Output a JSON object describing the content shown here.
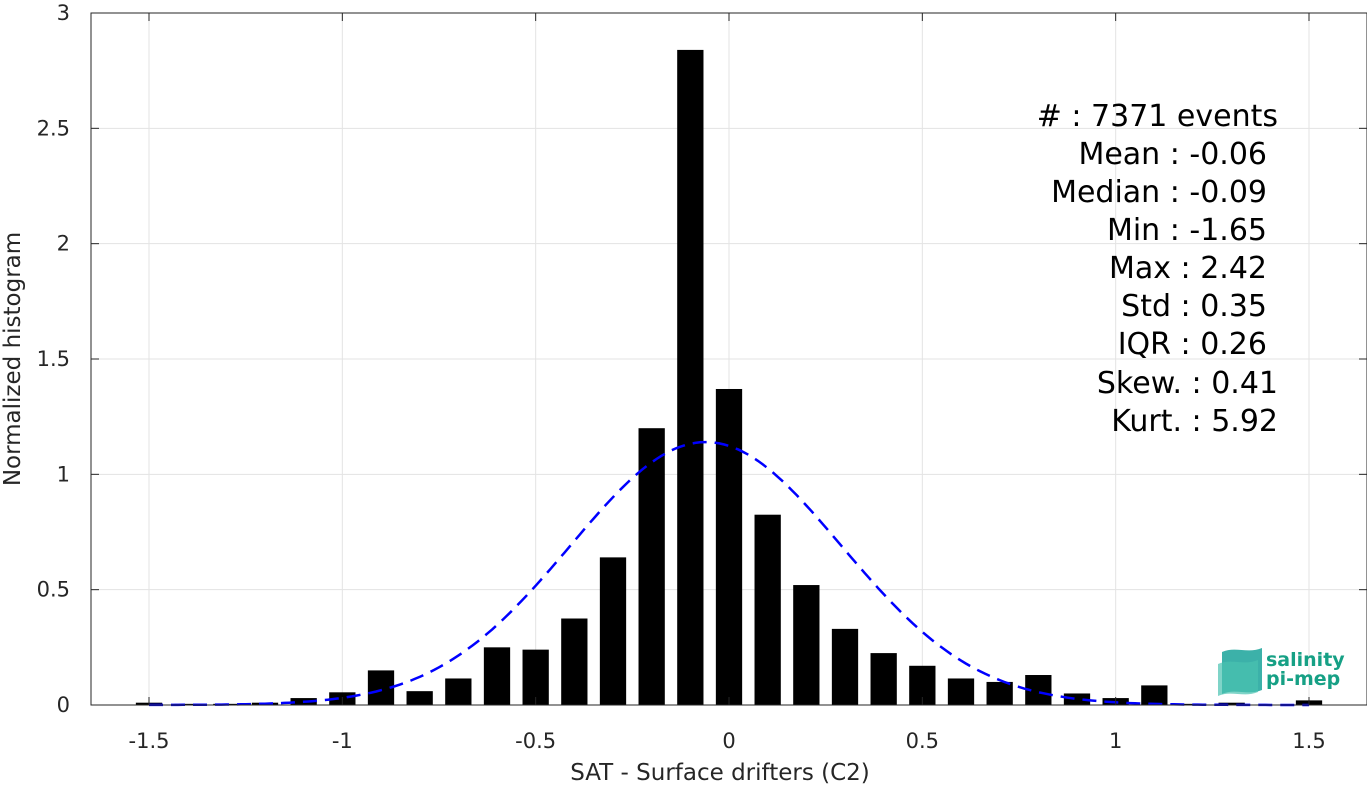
{
  "chart_data": {
    "type": "bar",
    "xlabel": "SAT - Surface drifters (C2)",
    "ylabel": "Normalized histogram",
    "xlim": [
      -1.65,
      1.65
    ],
    "ylim": [
      0,
      3
    ],
    "xticks": [
      "-1.5",
      "-1",
      "-0.5",
      "0",
      "0.5",
      "1",
      "1.5"
    ],
    "yticks": [
      "0",
      "0.5",
      "1",
      "1.5",
      "2",
      "2.5",
      "3"
    ],
    "grid": true,
    "bin_width": 0.1,
    "bins": {
      "x": [
        -1.5,
        -1.4,
        -1.3,
        -1.2,
        -1.1,
        -1.0,
        -0.9,
        -0.8,
        -0.7,
        -0.6,
        -0.5,
        -0.4,
        -0.3,
        -0.2,
        -0.1,
        0.0,
        0.1,
        0.2,
        0.3,
        0.4,
        0.5,
        0.6,
        0.7,
        0.8,
        0.9,
        1.0,
        1.1,
        1.2,
        1.3,
        1.4,
        1.5
      ],
      "values": [
        0.01,
        0.005,
        0.005,
        0.01,
        0.03,
        0.055,
        0.15,
        0.06,
        0.115,
        0.25,
        0.24,
        0.375,
        0.64,
        1.2,
        2.84,
        1.37,
        0.825,
        0.52,
        0.33,
        0.225,
        0.17,
        0.115,
        0.1,
        0.13,
        0.05,
        0.03,
        0.085,
        0.005,
        0.01,
        0.0,
        0.02
      ],
      "color": "#000000"
    },
    "fit": {
      "kind": "gaussian",
      "mean": -0.06,
      "std": 0.35,
      "color": "#0000ff",
      "style": "dashed"
    },
    "stats": [
      {
        "label": "#  : 7371 events"
      },
      {
        "label": "Mean : -0.06"
      },
      {
        "label": "Median : -0.09"
      },
      {
        "label": "Min : -1.65"
      },
      {
        "label": "Max : 2.42"
      },
      {
        "label": "Std : 0.35"
      },
      {
        "label": "IQR : 0.26"
      },
      {
        "label": "Skew. : 0.41"
      },
      {
        "label": "Kurt. : 5.92"
      }
    ]
  },
  "logo": {
    "line1": "salinity",
    "line2": "pi-mep",
    "color": "#16a085"
  }
}
